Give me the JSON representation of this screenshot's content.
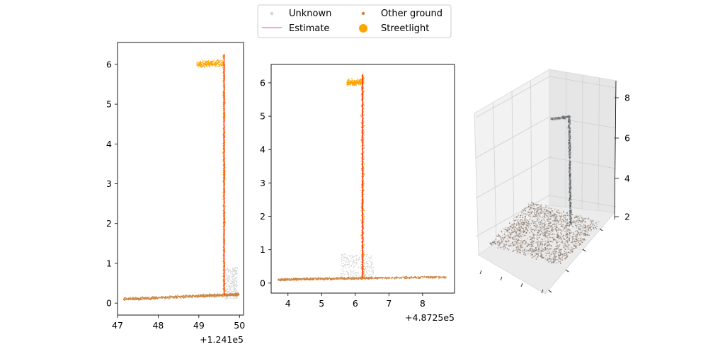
{
  "legend": {
    "items": [
      {
        "label": "Unknown",
        "color": "#d3d3d3",
        "marker": "small-dot"
      },
      {
        "label": "Other ground",
        "color": "#cd853f",
        "marker": "small-dot"
      },
      {
        "label": "Estimate",
        "color": "#ff0000",
        "marker": "line"
      },
      {
        "label": "Streetlight",
        "color": "#ffa500",
        "marker": "large-dot"
      }
    ],
    "placement": "top-center"
  },
  "colors": {
    "unknown": "#d3d3d3",
    "other_ground": "#cd853f",
    "estimate": "#ff0000",
    "streetlight": "#ffa500"
  },
  "chart_data": [
    {
      "type": "scatter",
      "title": "",
      "xlabel": "",
      "ylabel": "",
      "x_offset_label": "+1.241e5",
      "xlim": [
        47.0,
        50.1
      ],
      "ylim": [
        -0.3,
        6.55
      ],
      "xticks": [
        47,
        48,
        49,
        50
      ],
      "yticks": [
        0,
        1,
        2,
        3,
        4,
        5,
        6
      ],
      "grid": false,
      "series": [
        {
          "name": "Other ground",
          "description_points": [
            [
              47.15,
              0.1
            ],
            [
              48.0,
              0.13
            ],
            [
              49.0,
              0.18
            ],
            [
              49.6,
              0.2
            ],
            [
              50.0,
              0.22
            ]
          ]
        },
        {
          "name": "Unknown",
          "x_range": [
            49.65,
            49.95
          ],
          "y_range": [
            0.1,
            0.9
          ]
        },
        {
          "name": "Streetlight",
          "pole_x": 49.62,
          "pole_top": 6.25,
          "arm_x_range": [
            48.95,
            49.6
          ],
          "arm_y": 6.0
        },
        {
          "name": "Estimate",
          "x": [
            49.62,
            49.62
          ],
          "y": [
            0.2,
            6.25
          ]
        }
      ]
    },
    {
      "type": "scatter",
      "title": "",
      "xlabel": "",
      "ylabel": "",
      "x_offset_label": "+4.8725e5",
      "xlim": [
        3.5,
        8.95
      ],
      "ylim": [
        -0.3,
        6.55
      ],
      "xticks": [
        4,
        5,
        6,
        7,
        8
      ],
      "yticks": [
        0,
        1,
        2,
        3,
        4,
        5,
        6
      ],
      "grid": false,
      "series": [
        {
          "name": "Other ground",
          "description_points": [
            [
              3.7,
              0.1
            ],
            [
              5.0,
              0.13
            ],
            [
              6.5,
              0.15
            ],
            [
              8.7,
              0.18
            ]
          ]
        },
        {
          "name": "Unknown",
          "x_range": [
            5.55,
            6.55
          ],
          "y_range": [
            0.15,
            0.88
          ]
        },
        {
          "name": "Streetlight",
          "pole_x": 6.22,
          "pole_top": 6.25,
          "arm_x_range": [
            5.75,
            6.2
          ],
          "arm_y": 6.0
        },
        {
          "name": "Estimate",
          "x": [
            6.22,
            6.22
          ],
          "y": [
            0.15,
            6.25
          ]
        }
      ]
    },
    {
      "type": "scatter3d",
      "title": "",
      "zticks": [
        2,
        4,
        6,
        8
      ],
      "grid": true
    }
  ]
}
